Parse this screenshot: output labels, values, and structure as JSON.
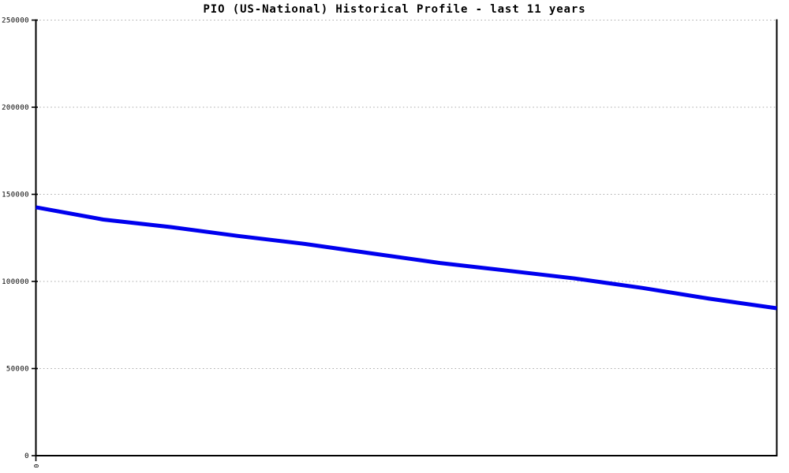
{
  "chart_data": {
    "type": "line",
    "title": "PIO (US-National) Historical Profile - last 11 years",
    "xlabel": "",
    "ylabel": "",
    "x": [
      0,
      1,
      2,
      3,
      4,
      5,
      6,
      7,
      8,
      9,
      10,
      11
    ],
    "series": [
      {
        "name": "PIO (US-National)",
        "color": "#0000ee",
        "values": [
          142600,
          135500,
          131200,
          126100,
          121500,
          116000,
          110600,
          106200,
          101700,
          96300,
          90100,
          84600
        ]
      }
    ],
    "ylim": [
      0,
      250000
    ],
    "yticks": [
      0,
      50000,
      100000,
      150000,
      200000,
      250000
    ],
    "ytick_labels": [
      "0",
      "50000",
      "100000",
      "150000",
      "200000",
      "250000"
    ],
    "xtick_labels": [
      "0"
    ],
    "grid": "horizontal-dotted",
    "legend": "none"
  },
  "colors": {
    "line": "#0000ee",
    "grid": "#a8a8a8",
    "axis": "#000000",
    "background": "#ffffff",
    "text": "#000000"
  }
}
